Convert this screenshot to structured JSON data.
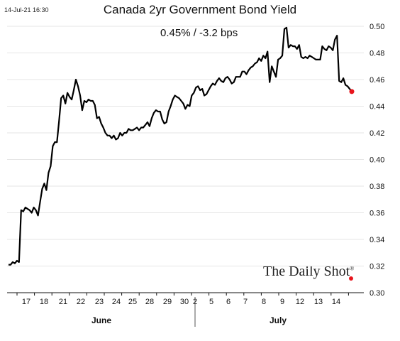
{
  "header": {
    "timestamp": "14-Jul-21 16:30",
    "title": "Canada 2yr Government Bond Yield",
    "readout": "0.45%  /  -3.2 bps",
    "brand": "The Daily Shot",
    "brand_mark": "®"
  },
  "chart_data": {
    "type": "line",
    "title": "Canada 2yr Government Bond Yield",
    "xlabel": "",
    "ylabel": "",
    "ylim": [
      0.3,
      0.5
    ],
    "yticks": [
      "0.30",
      "0.32",
      "0.34",
      "0.36",
      "0.38",
      "0.40",
      "0.42",
      "0.44",
      "0.46",
      "0.48",
      "0.50"
    ],
    "xticks": [
      "17",
      "18",
      "21",
      "22",
      "23",
      "24",
      "25",
      "28",
      "29",
      "30",
      "2",
      "5",
      "6",
      "7",
      "8",
      "9",
      "12",
      "13",
      "14"
    ],
    "months": [
      "June",
      "July"
    ],
    "grid": true,
    "line_color": "#000000",
    "marker_color": "#e8141c",
    "series": [
      {
        "values": [
          0.321,
          0.321,
          0.323,
          0.322,
          0.324,
          0.323,
          0.362,
          0.361,
          0.364,
          0.363,
          0.362,
          0.36,
          0.364,
          0.362,
          0.358,
          0.368,
          0.378,
          0.382,
          0.377,
          0.39,
          0.395,
          0.41,
          0.413,
          0.413,
          0.429,
          0.446,
          0.448,
          0.442,
          0.45,
          0.447,
          0.445,
          0.452,
          0.46,
          0.455,
          0.448,
          0.437,
          0.444,
          0.443,
          0.445,
          0.444,
          0.444,
          0.441,
          0.431,
          0.432,
          0.427,
          0.424,
          0.42,
          0.418,
          0.418,
          0.416,
          0.418,
          0.415,
          0.416,
          0.42,
          0.418,
          0.42,
          0.42,
          0.423,
          0.422,
          0.422,
          0.423,
          0.424,
          0.422,
          0.424,
          0.424,
          0.426,
          0.428,
          0.425,
          0.431,
          0.435,
          0.437,
          0.436,
          0.436,
          0.43,
          0.427,
          0.428,
          0.436,
          0.44,
          0.445,
          0.448,
          0.447,
          0.446,
          0.444,
          0.442,
          0.438,
          0.441,
          0.44,
          0.448,
          0.45,
          0.454,
          0.455,
          0.452,
          0.453,
          0.448,
          0.449,
          0.452,
          0.455,
          0.457,
          0.456,
          0.459,
          0.461,
          0.459,
          0.458,
          0.461,
          0.462,
          0.46,
          0.457,
          0.458,
          0.462,
          0.462,
          0.462,
          0.466,
          0.466,
          0.464,
          0.467,
          0.469,
          0.47,
          0.472,
          0.473,
          0.476,
          0.474,
          0.478,
          0.476,
          0.481,
          0.458,
          0.47,
          0.466,
          0.462,
          0.475,
          0.476,
          0.478,
          0.498,
          0.499,
          0.484,
          0.486,
          0.485,
          0.485,
          0.483,
          0.486,
          0.477,
          0.476,
          0.477,
          0.476,
          0.478,
          0.477,
          0.476,
          0.475,
          0.475,
          0.475,
          0.485,
          0.483,
          0.482,
          0.485,
          0.484,
          0.482,
          0.49,
          0.493,
          0.459,
          0.458,
          0.461,
          0.456,
          0.455,
          0.453,
          0.451
        ]
      }
    ]
  }
}
